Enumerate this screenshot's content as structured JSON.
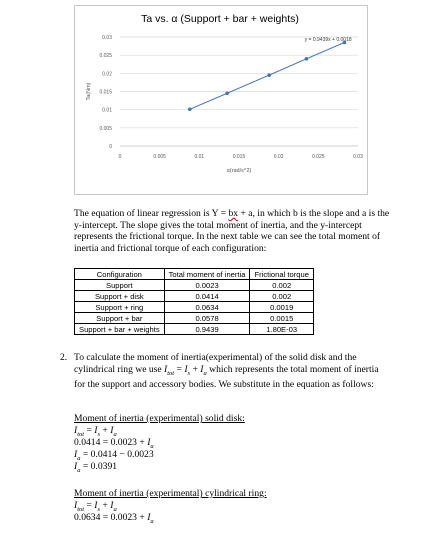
{
  "chart_data": {
    "type": "scatter",
    "title": "Ta vs. α (Support + bar + weights)",
    "xlabel": "α(rad/s^2)",
    "ylabel": "Ta(Nm)",
    "xlim": [
      0,
      0.03
    ],
    "ylim": [
      0,
      0.03
    ],
    "x_ticks": [
      "0",
      "0.005",
      "0.01",
      "0.015",
      "0.02",
      "0.025",
      "0.03"
    ],
    "y_ticks": [
      "0",
      "0.005",
      "0.01",
      "0.015",
      "0.02",
      "0.025",
      "0.03"
    ],
    "grid": "horizontal",
    "trendline_label": "y = 0.9439x + 0.0018",
    "trendline": {
      "slope": 0.9439,
      "intercept": 0.0018
    },
    "series": [
      {
        "x": [
          0.0088,
          0.0135,
          0.0188,
          0.0235,
          0.0283
        ],
        "y": [
          0.0101,
          0.0145,
          0.0195,
          0.024,
          0.0285
        ]
      }
    ],
    "colors": {
      "series": "#4472c4",
      "grid": "#d9d9d9",
      "axis_text": "#595959"
    }
  },
  "paragraph": {
    "before": "The equation of linear regression is Y = ",
    "bx": "bx",
    "after": " + a, in which b is the slope and a is the y-intercept. The slope gives the total moment of inertia, and the y-intercept represents the frictional torque. In the next table we can see the total moment of inertia and frictional torque of each configuration:"
  },
  "table": {
    "headers": [
      "Configuration",
      "Total moment of inertia",
      "Frictional torque"
    ],
    "rows": [
      [
        "Support",
        "0.0023",
        "0.002"
      ],
      [
        "Support + disk",
        "0.0414",
        "0.002"
      ],
      [
        "Support + ring",
        "0.0634",
        "0.0019"
      ],
      [
        "Support + bar",
        "0.0578",
        "0.0015"
      ],
      [
        "Support + bar + weights",
        "0.9439",
        "1.80E-03"
      ]
    ]
  },
  "item2": {
    "number": "2.",
    "text_before": "To calculate the moment of inertia(experimental) of the solid disk and the cylindrical ring we use ",
    "text_after": " which represents the total moment of inertia for the support and accessory bodies. We substitute in the equation as follows:"
  },
  "disk": {
    "heading": "Moment of inertia (experimental) solid disk:",
    "line2_a": "0.0414 = ",
    "line2_b": "0.0023 + ",
    "line3": " = 0.0414 − 0.0023",
    "line4": " = 0.0391"
  },
  "ring": {
    "heading": "Moment of inertia (experimental) cylindrical ring:",
    "line2_a": "0.0634 = ",
    "line2_b": "0.0023 + "
  },
  "symbols": {
    "I": "I",
    "tot": "tot",
    "s": "s",
    "a": "a",
    "eq": " = ",
    "plus": " + "
  }
}
